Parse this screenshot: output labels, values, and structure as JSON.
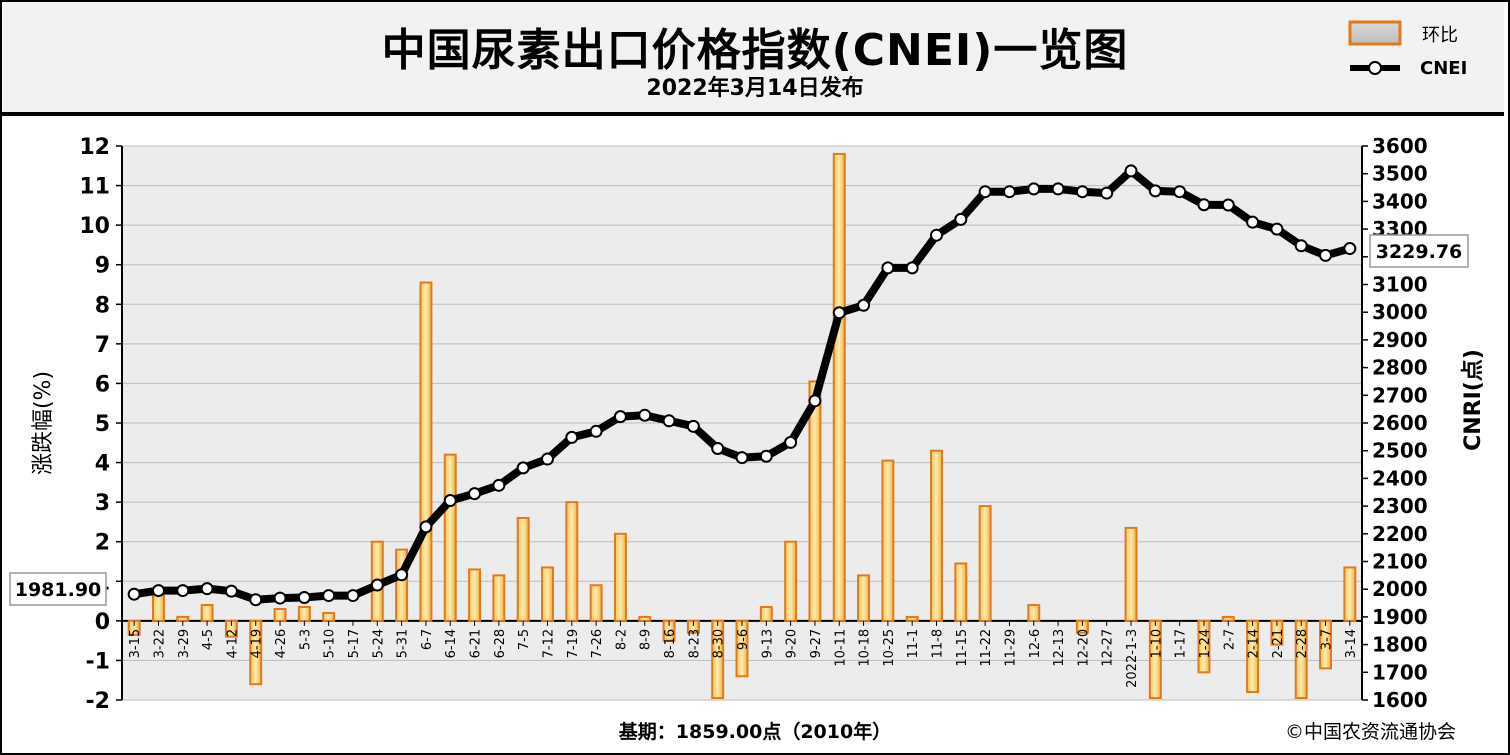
{
  "header": {
    "title": "中国尿素出口价格指数(CNEI)一览图",
    "subtitle": "2022年3月14日发布"
  },
  "legend": {
    "bar_label": "环比",
    "line_label": "CNEI"
  },
  "footer": {
    "base_note": "基期：1859.00点（2010年）",
    "copyright": "©中国农资流通协会"
  },
  "callouts": {
    "first_value": "1981.90",
    "last_value": "3229.76"
  },
  "chart_data": {
    "type": "bar+line",
    "categories": [
      "3-15",
      "3-22",
      "3-29",
      "4-5",
      "4-12",
      "4-19",
      "4-26",
      "5-3",
      "5-10",
      "5-17",
      "5-24",
      "5-31",
      "6-7",
      "6-14",
      "6-21",
      "6-28",
      "7-5",
      "7-12",
      "7-19",
      "7-26",
      "8-2",
      "8-9",
      "8-16",
      "8-23",
      "8-30",
      "9-6",
      "9-13",
      "9-20",
      "9-27",
      "10-11",
      "10-18",
      "10-25",
      "11-1",
      "11-8",
      "11-15",
      "11-22",
      "11-29",
      "12-6",
      "12-13",
      "12-20",
      "12-27",
      "2022-1-3",
      "1-10",
      "1-17",
      "1-24",
      "2-7",
      "2-14",
      "2-21",
      "2-28",
      "3-7",
      "3-14"
    ],
    "series": [
      {
        "name": "环比",
        "axis": "left",
        "values": [
          -0.35,
          0.7,
          0.1,
          0.4,
          -0.4,
          -1.6,
          0.3,
          0.35,
          0.2,
          0,
          2.0,
          1.8,
          8.55,
          4.2,
          1.3,
          1.15,
          2.6,
          1.35,
          3.0,
          0.9,
          2.2,
          0.1,
          -0.5,
          -0.3,
          -1.95,
          -1.4,
          0.35,
          2.0,
          6.05,
          11.8,
          1.15,
          4.05,
          0.1,
          4.3,
          1.45,
          2.9,
          0,
          0.4,
          0,
          -0.3,
          0,
          2.35,
          -1.95,
          0,
          -1.3,
          0.1,
          -1.8,
          -0.6,
          -1.95,
          -1.2,
          1.35
        ]
      },
      {
        "name": "CNEI",
        "axis": "right",
        "values": [
          1981.9,
          1995,
          1995,
          2002,
          1993,
          1962,
          1968,
          1970,
          1977,
          1977,
          2015,
          2052,
          2225,
          2320,
          2345,
          2375,
          2438,
          2470,
          2548,
          2570,
          2623,
          2628,
          2608,
          2588,
          2508,
          2475,
          2480,
          2530,
          2680,
          2998,
          3025,
          3160,
          3160,
          3278,
          3335,
          3435,
          3435,
          3445,
          3445,
          3435,
          3430,
          3510,
          3438,
          3435,
          3388,
          3387,
          3325,
          3300,
          3240,
          3205,
          3229.76
        ]
      }
    ],
    "y_left": {
      "label": "涨跌幅(%)",
      "lim": [
        -2,
        12
      ],
      "ticks": [
        -2,
        -1,
        0,
        1,
        2,
        3,
        4,
        5,
        6,
        7,
        8,
        9,
        10,
        11,
        12
      ]
    },
    "y_right": {
      "label": "CNRI(点)",
      "lim": [
        1600,
        3600
      ],
      "ticks": [
        1600,
        1700,
        1800,
        1900,
        2000,
        2100,
        2200,
        2300,
        2400,
        2500,
        2600,
        2700,
        2800,
        2900,
        3000,
        3100,
        3200,
        3300,
        3400,
        3500,
        3600
      ]
    },
    "grid": true,
    "legend_position": "top-right",
    "colors": {
      "bar_fill_top": "#f4b942",
      "bar_fill_bottom": "#f9e6a0",
      "bar_stroke": "#e07a1e",
      "line": "#000000",
      "marker_fill": "#ffffff",
      "plot_bg": "#ececec",
      "grid": "#bdbdbd"
    }
  }
}
